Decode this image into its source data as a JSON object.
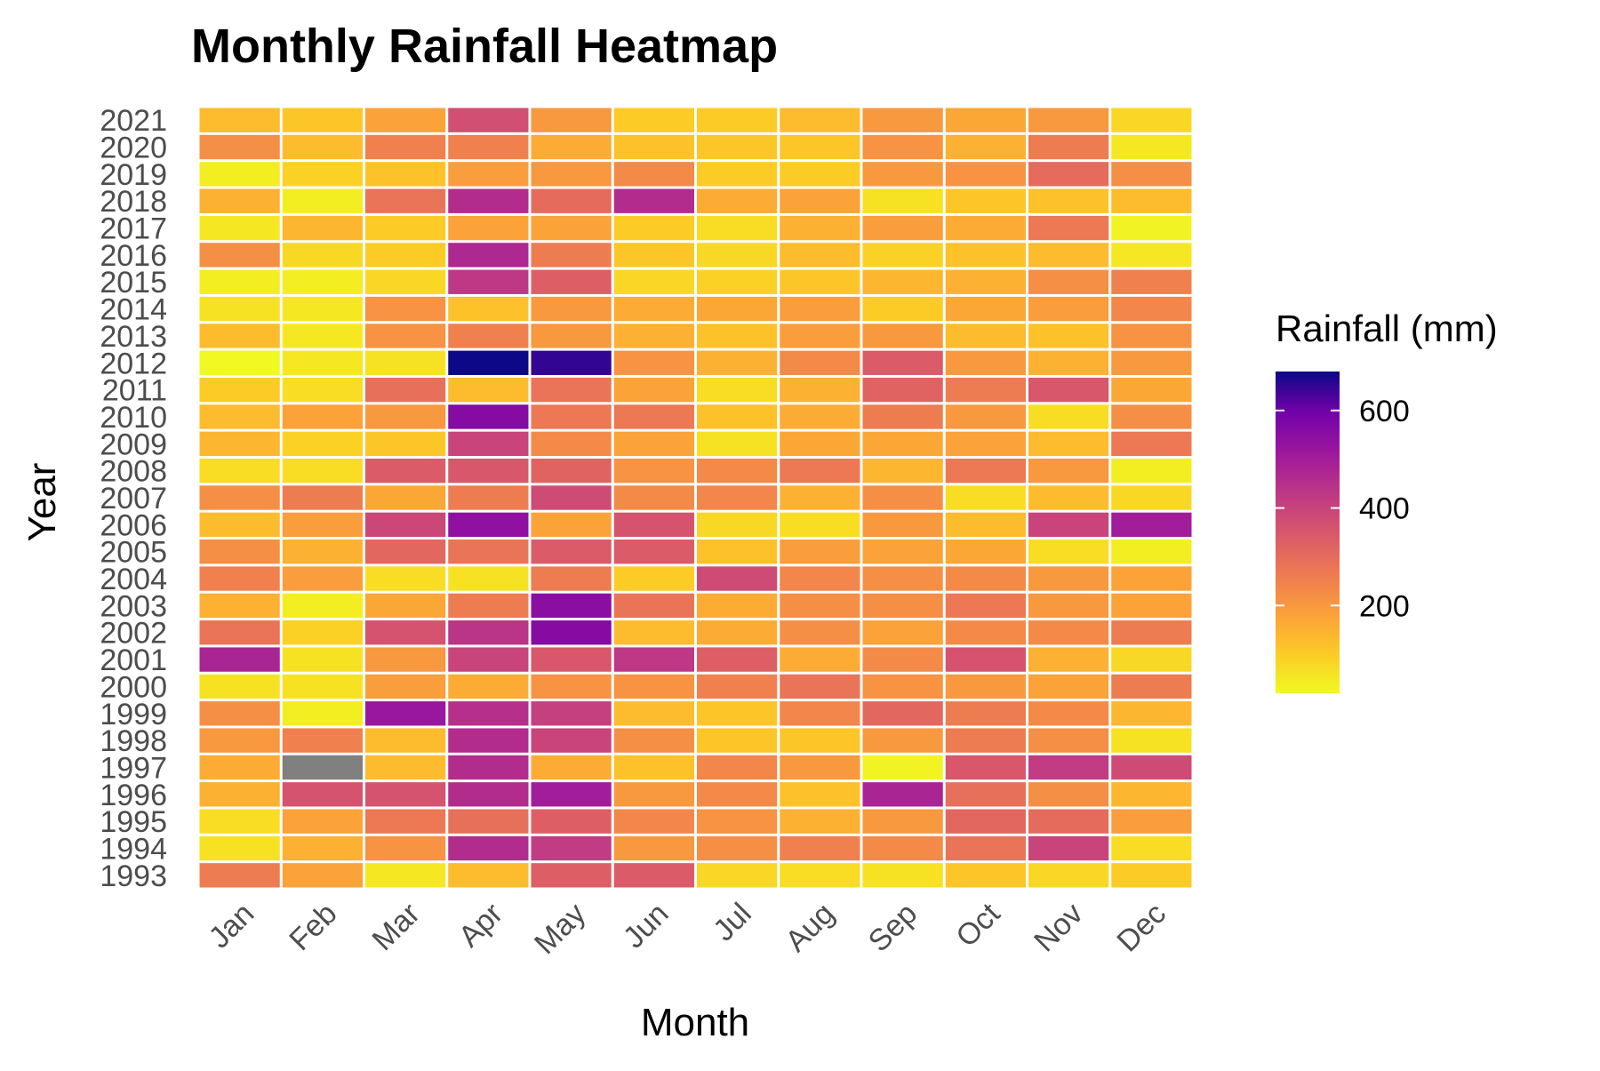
{
  "chart_data": {
    "type": "heatmap",
    "title": "Monthly Rainfall Heatmap",
    "xlabel": "Month",
    "ylabel": "Year",
    "x": [
      "Jan",
      "Feb",
      "Mar",
      "Apr",
      "May",
      "Jun",
      "Jul",
      "Aug",
      "Sep",
      "Oct",
      "Nov",
      "Dec"
    ],
    "y": [
      "1993",
      "1994",
      "1995",
      "1996",
      "1997",
      "1998",
      "1999",
      "2000",
      "2001",
      "2002",
      "2003",
      "2004",
      "2005",
      "2006",
      "2007",
      "2008",
      "2009",
      "2010",
      "2011",
      "2012",
      "2013",
      "2014",
      "2015",
      "2016",
      "2017",
      "2018",
      "2019",
      "2020",
      "2021"
    ],
    "values": [
      [
        260,
        180,
        50,
        130,
        330,
        340,
        80,
        70,
        60,
        110,
        80,
        100
      ],
      [
        60,
        150,
        210,
        460,
        420,
        200,
        220,
        250,
        230,
        280,
        400,
        70
      ],
      [
        70,
        180,
        270,
        290,
        330,
        240,
        210,
        150,
        200,
        310,
        300,
        190
      ],
      [
        150,
        360,
        360,
        460,
        500,
        200,
        230,
        120,
        480,
        290,
        220,
        140
      ],
      [
        160,
        null,
        130,
        460,
        160,
        120,
        240,
        200,
        30,
        350,
        420,
        380
      ],
      [
        200,
        250,
        130,
        460,
        400,
        220,
        110,
        110,
        200,
        260,
        220,
        60
      ],
      [
        220,
        40,
        520,
        450,
        410,
        130,
        110,
        240,
        310,
        260,
        230,
        140
      ],
      [
        60,
        60,
        190,
        160,
        210,
        210,
        250,
        280,
        210,
        200,
        180,
        260
      ],
      [
        480,
        60,
        200,
        400,
        350,
        430,
        330,
        160,
        230,
        360,
        150,
        80
      ],
      [
        280,
        90,
        360,
        440,
        560,
        130,
        160,
        220,
        180,
        230,
        230,
        260
      ],
      [
        150,
        40,
        170,
        260,
        550,
        280,
        160,
        220,
        220,
        270,
        200,
        180
      ],
      [
        250,
        190,
        70,
        60,
        260,
        100,
        380,
        240,
        220,
        230,
        200,
        180
      ],
      [
        220,
        150,
        310,
        280,
        340,
        340,
        120,
        190,
        180,
        170,
        70,
        40
      ],
      [
        130,
        190,
        390,
        540,
        180,
        360,
        80,
        70,
        200,
        130,
        400,
        500
      ],
      [
        220,
        260,
        170,
        260,
        380,
        230,
        240,
        150,
        220,
        70,
        130,
        80
      ],
      [
        70,
        70,
        340,
        350,
        320,
        210,
        230,
        270,
        140,
        270,
        200,
        40
      ],
      [
        140,
        90,
        110,
        400,
        230,
        180,
        60,
        170,
        170,
        180,
        130,
        270
      ],
      [
        130,
        180,
        200,
        560,
        270,
        270,
        120,
        160,
        260,
        200,
        70,
        220
      ],
      [
        100,
        70,
        290,
        130,
        280,
        180,
        70,
        150,
        320,
        260,
        350,
        170
      ],
      [
        20,
        50,
        60,
        680,
        650,
        210,
        150,
        230,
        340,
        200,
        150,
        200
      ],
      [
        130,
        50,
        210,
        250,
        200,
        150,
        120,
        190,
        200,
        130,
        120,
        210
      ],
      [
        60,
        50,
        210,
        120,
        200,
        160,
        170,
        190,
        100,
        170,
        190,
        240
      ],
      [
        40,
        40,
        80,
        430,
        330,
        80,
        90,
        110,
        140,
        150,
        220,
        250
      ],
      [
        220,
        80,
        100,
        470,
        260,
        110,
        80,
        130,
        90,
        120,
        130,
        50
      ],
      [
        50,
        140,
        100,
        180,
        180,
        100,
        70,
        150,
        190,
        160,
        270,
        30
      ],
      [
        150,
        40,
        280,
        460,
        300,
        460,
        160,
        180,
        60,
        110,
        120,
        130
      ],
      [
        40,
        90,
        120,
        190,
        200,
        230,
        100,
        100,
        200,
        210,
        300,
        220
      ],
      [
        220,
        130,
        250,
        250,
        160,
        120,
        110,
        110,
        210,
        150,
        260,
        50
      ],
      [
        130,
        110,
        180,
        370,
        200,
        100,
        100,
        130,
        200,
        170,
        200,
        80
      ]
    ],
    "missing_color": "#808080",
    "colorbar": {
      "title": "Rainfall (mm)",
      "range": [
        20,
        680
      ],
      "ticks": [
        200,
        400,
        600
      ],
      "colormap": "plasma (reversed)"
    },
    "grid": false
  }
}
